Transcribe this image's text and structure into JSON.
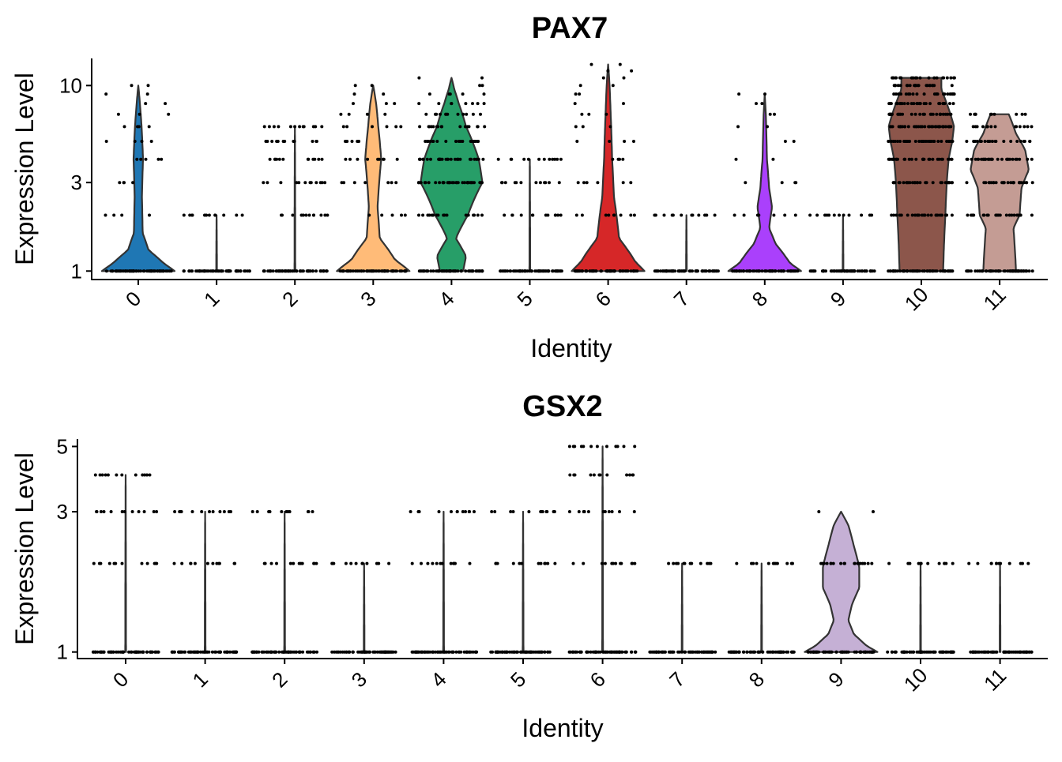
{
  "chart_data": [
    {
      "type": "violin",
      "title": "PAX7",
      "xlabel": "Identity",
      "ylabel": "Expression Level",
      "y_scale": "log",
      "ylim": [
        0.9,
        14
      ],
      "y_ticks": [
        1,
        3,
        10
      ],
      "y_tick_labels": [
        "1",
        "3",
        "10"
      ],
      "grid": false,
      "legend": "none",
      "categories": [
        "0",
        "1",
        "2",
        "3",
        "4",
        "5",
        "6",
        "7",
        "8",
        "9",
        "10",
        "11"
      ],
      "colors": [
        "#1f77b4",
        "#ff7f0e",
        "#279e68",
        "#d62728",
        "#aa40fc",
        "#8c564b",
        "#e377c2",
        "#b5bd61",
        "#17becf",
        "#aec7e8",
        "#ffbb78",
        "#98df8a"
      ],
      "violins": [
        {
          "identity": "0",
          "fill": "#1f77b4",
          "max": 10,
          "profile": [
            [
              1,
              1.0
            ],
            [
              1.1,
              0.7
            ],
            [
              1.3,
              0.28
            ],
            [
              1.6,
              0.12
            ],
            [
              2.5,
              0.1
            ],
            [
              4,
              0.13
            ],
            [
              6,
              0.09
            ],
            [
              10,
              0.0
            ]
          ]
        },
        {
          "identity": "1",
          "fill": null,
          "max": 2,
          "profile": [
            [
              1,
              0.01
            ],
            [
              2,
              0.0
            ]
          ]
        },
        {
          "identity": "2",
          "fill": null,
          "max": 6,
          "profile": [
            [
              1,
              0.01
            ],
            [
              6,
              0.0
            ]
          ]
        },
        {
          "identity": "3",
          "fill": "#ffbb78",
          "max": 10,
          "profile": [
            [
              1,
              1.0
            ],
            [
              1.15,
              0.6
            ],
            [
              1.5,
              0.18
            ],
            [
              2.2,
              0.12
            ],
            [
              4,
              0.22
            ],
            [
              6,
              0.14
            ],
            [
              8,
              0.08
            ],
            [
              10,
              0.0
            ]
          ]
        },
        {
          "identity": "4",
          "fill": "#279e68",
          "max": 11,
          "profile": [
            [
              1,
              0.32
            ],
            [
              1.2,
              0.4
            ],
            [
              1.5,
              0.12
            ],
            [
              2.0,
              0.45
            ],
            [
              3,
              0.85
            ],
            [
              4,
              0.75
            ],
            [
              6,
              0.4
            ],
            [
              8,
              0.2
            ],
            [
              9.5,
              0.08
            ],
            [
              11,
              0.0
            ]
          ]
        },
        {
          "identity": "5",
          "fill": null,
          "max": 4,
          "profile": [
            [
              1,
              0.01
            ],
            [
              4,
              0.0
            ]
          ]
        },
        {
          "identity": "6",
          "fill": "#d62728",
          "max": 13,
          "profile": [
            [
              1,
              1.0
            ],
            [
              1.12,
              0.75
            ],
            [
              1.5,
              0.3
            ],
            [
              2.5,
              0.16
            ],
            [
              4,
              0.11
            ],
            [
              7,
              0.07
            ],
            [
              10,
              0.04
            ],
            [
              13,
              0.0
            ]
          ]
        },
        {
          "identity": "7",
          "fill": null,
          "max": 2,
          "profile": [
            [
              1,
              0.01
            ],
            [
              2,
              0.0
            ]
          ]
        },
        {
          "identity": "8",
          "fill": "#aa40fc",
          "max": 9,
          "profile": [
            [
              1,
              1.0
            ],
            [
              1.1,
              0.7
            ],
            [
              1.4,
              0.3
            ],
            [
              1.7,
              0.12
            ],
            [
              2.2,
              0.2
            ],
            [
              2.8,
              0.12
            ],
            [
              4,
              0.06
            ],
            [
              7,
              0.03
            ],
            [
              9,
              0.0
            ]
          ]
        },
        {
          "identity": "9",
          "fill": null,
          "max": 2,
          "profile": [
            [
              1,
              0.01
            ],
            [
              2,
              0.0
            ]
          ]
        },
        {
          "identity": "10",
          "fill": "#8c564b",
          "max": 11,
          "profile": [
            [
              1,
              0.6
            ],
            [
              1.5,
              0.63
            ],
            [
              2.0,
              0.66
            ],
            [
              3,
              0.7
            ],
            [
              4,
              0.75
            ],
            [
              5,
              0.85
            ],
            [
              6,
              0.9
            ],
            [
              7.5,
              0.75
            ],
            [
              9.5,
              0.55
            ],
            [
              11,
              0.55
            ]
          ]
        },
        {
          "identity": "11",
          "fill": "#c49c94",
          "max": 7,
          "profile": [
            [
              1,
              0.45
            ],
            [
              1.3,
              0.42
            ],
            [
              1.7,
              0.38
            ],
            [
              2.0,
              0.55
            ],
            [
              2.8,
              0.6
            ],
            [
              3.5,
              0.8
            ],
            [
              4.5,
              0.7
            ],
            [
              5.5,
              0.45
            ],
            [
              7,
              0.25
            ]
          ]
        }
      ]
    },
    {
      "type": "violin",
      "title": "GSX2",
      "xlabel": "Identity",
      "ylabel": "Expression Level",
      "y_scale": "log",
      "ylim": [
        0.95,
        5.3
      ],
      "y_ticks": [
        1,
        3,
        5
      ],
      "y_tick_labels": [
        "1",
        "3",
        "5"
      ],
      "grid": false,
      "legend": "none",
      "categories": [
        "0",
        "1",
        "2",
        "3",
        "4",
        "5",
        "6",
        "7",
        "8",
        "9",
        "10",
        "11"
      ],
      "violins": [
        {
          "identity": "0",
          "fill": null,
          "max": 4,
          "profile": [
            [
              1,
              0.01
            ],
            [
              4,
              0.0
            ]
          ]
        },
        {
          "identity": "1",
          "fill": null,
          "max": 3,
          "profile": [
            [
              1,
              0.01
            ],
            [
              3,
              0.0
            ]
          ]
        },
        {
          "identity": "2",
          "fill": null,
          "max": 3,
          "profile": [
            [
              1,
              0.01
            ],
            [
              3,
              0.0
            ]
          ]
        },
        {
          "identity": "3",
          "fill": null,
          "max": 2,
          "profile": [
            [
              1,
              0.01
            ],
            [
              2,
              0.0
            ]
          ]
        },
        {
          "identity": "4",
          "fill": null,
          "max": 3,
          "profile": [
            [
              1,
              0.01
            ],
            [
              3,
              0.0
            ]
          ]
        },
        {
          "identity": "5",
          "fill": null,
          "max": 3,
          "profile": [
            [
              1,
              0.01
            ],
            [
              3,
              0.0
            ]
          ]
        },
        {
          "identity": "6",
          "fill": null,
          "max": 5,
          "profile": [
            [
              1,
              0.01
            ],
            [
              5,
              0.0
            ]
          ]
        },
        {
          "identity": "7",
          "fill": null,
          "max": 2,
          "profile": [
            [
              1,
              0.01
            ],
            [
              2,
              0.0
            ]
          ]
        },
        {
          "identity": "8",
          "fill": null,
          "max": 2,
          "profile": [
            [
              1,
              0.01
            ],
            [
              2,
              0.0
            ]
          ]
        },
        {
          "identity": "9",
          "fill": "#c5b0d5",
          "max": 3,
          "profile": [
            [
              1,
              1.0
            ],
            [
              1.05,
              0.7
            ],
            [
              1.15,
              0.35
            ],
            [
              1.28,
              0.2
            ],
            [
              1.45,
              0.3
            ],
            [
              1.65,
              0.5
            ],
            [
              1.95,
              0.5
            ],
            [
              2.3,
              0.35
            ],
            [
              2.7,
              0.2
            ],
            [
              3,
              0.0
            ]
          ]
        },
        {
          "identity": "10",
          "fill": null,
          "max": 2,
          "profile": [
            [
              1,
              0.01
            ],
            [
              2,
              0.0
            ]
          ]
        },
        {
          "identity": "11",
          "fill": null,
          "max": 2,
          "profile": [
            [
              1,
              0.01
            ],
            [
              2,
              0.0
            ]
          ]
        }
      ]
    }
  ]
}
